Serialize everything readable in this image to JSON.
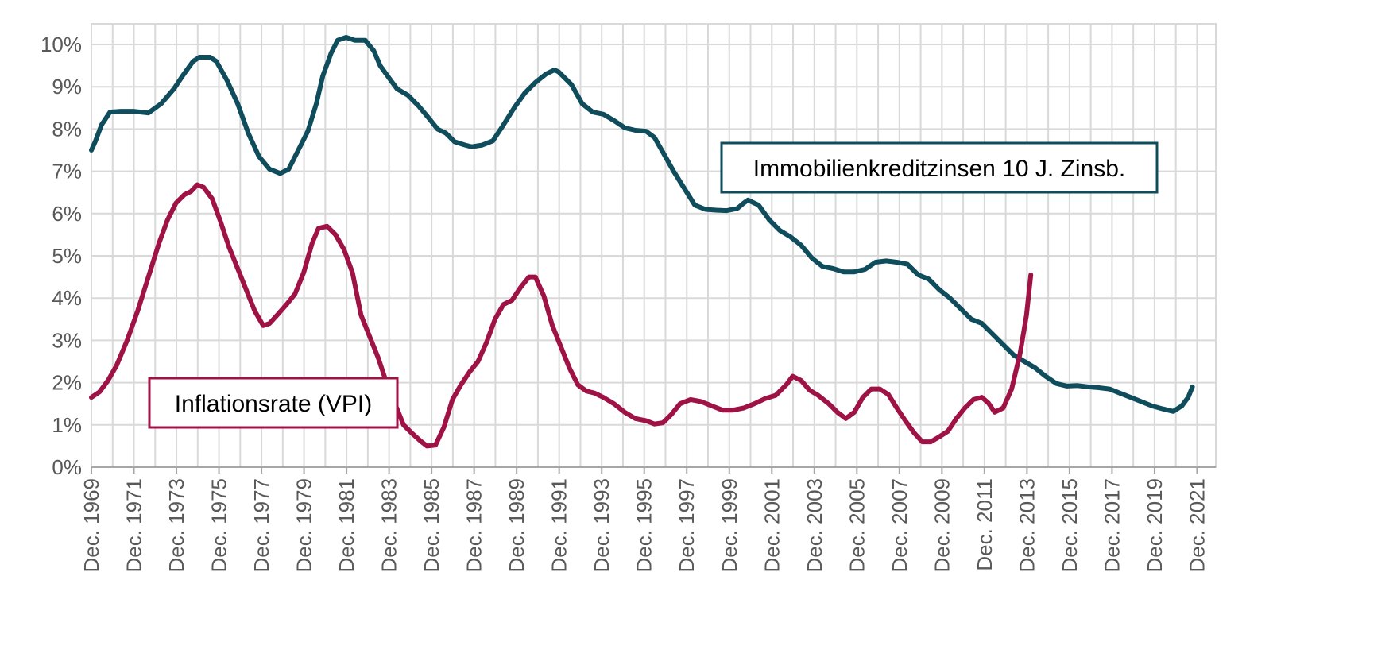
{
  "chart_data": {
    "type": "line",
    "title": "",
    "xlabel": "",
    "ylabel": "",
    "grid": true,
    "x_range": [
      1969.92,
      2022.8
    ],
    "ylim": [
      0,
      10
    ],
    "y_ticks": [
      {
        "value": 0,
        "label": "0%"
      },
      {
        "value": 1,
        "label": "1%"
      },
      {
        "value": 2,
        "label": "2%"
      },
      {
        "value": 3,
        "label": "3%"
      },
      {
        "value": 4,
        "label": "4%"
      },
      {
        "value": 5,
        "label": "5%"
      },
      {
        "value": 6,
        "label": "6%"
      },
      {
        "value": 7,
        "label": "7%"
      },
      {
        "value": 8,
        "label": "8%"
      },
      {
        "value": 9,
        "label": "9%"
      },
      {
        "value": 10,
        "label": "10%"
      }
    ],
    "x_ticks": [
      {
        "value": 1969.92,
        "label": "Dec. 1969"
      },
      {
        "value": 1971.92,
        "label": "Dec. 1971"
      },
      {
        "value": 1973.92,
        "label": "Dec. 1973"
      },
      {
        "value": 1975.92,
        "label": "Dec. 1975"
      },
      {
        "value": 1977.92,
        "label": "Dec. 1977"
      },
      {
        "value": 1979.92,
        "label": "Dec. 1979"
      },
      {
        "value": 1981.92,
        "label": "Dec. 1981"
      },
      {
        "value": 1983.92,
        "label": "Dec. 1983"
      },
      {
        "value": 1985.92,
        "label": "Dec. 1985"
      },
      {
        "value": 1987.92,
        "label": "Dec. 1987"
      },
      {
        "value": 1989.92,
        "label": "Dec. 1989"
      },
      {
        "value": 1991.92,
        "label": "Dec. 1991"
      },
      {
        "value": 1993.92,
        "label": "Dec. 1993"
      },
      {
        "value": 1995.92,
        "label": "Dec. 1995"
      },
      {
        "value": 1997.92,
        "label": "Dec. 1997"
      },
      {
        "value": 1999.92,
        "label": "Dec. 1999"
      },
      {
        "value": 2001.92,
        "label": "Dec. 2001"
      },
      {
        "value": 2003.92,
        "label": "Dec. 2003"
      },
      {
        "value": 2005.92,
        "label": "Dec. 2005"
      },
      {
        "value": 2007.92,
        "label": "Dec. 2007"
      },
      {
        "value": 2009.92,
        "label": "Dec. 2009"
      },
      {
        "value": 2011.92,
        "label": "Dec. 2011"
      },
      {
        "value": 2013.92,
        "label": "Dec. 2013"
      },
      {
        "value": 2015.92,
        "label": "Dec. 2015"
      },
      {
        "value": 2017.92,
        "label": "Dec. 2017"
      },
      {
        "value": 2019.92,
        "label": "Dec. 2019"
      },
      {
        "value": 2021.92,
        "label": "Dec. 2021"
      }
    ],
    "series": [
      {
        "name": "Immobilienkreditzinsen 10 J. Zinsb.",
        "color": "#0f4c5c",
        "points": [
          [
            1969.92,
            7.5
          ],
          [
            1970.1,
            7.7
          ],
          [
            1970.4,
            8.1
          ],
          [
            1970.8,
            8.4
          ],
          [
            1971.3,
            8.42
          ],
          [
            1971.9,
            8.42
          ],
          [
            1972.6,
            8.38
          ],
          [
            1973.2,
            8.6
          ],
          [
            1973.8,
            8.95
          ],
          [
            1974.2,
            9.25
          ],
          [
            1974.7,
            9.6
          ],
          [
            1975.0,
            9.7
          ],
          [
            1975.5,
            9.7
          ],
          [
            1975.8,
            9.6
          ],
          [
            1976.3,
            9.15
          ],
          [
            1976.8,
            8.6
          ],
          [
            1977.3,
            7.9
          ],
          [
            1977.8,
            7.35
          ],
          [
            1978.3,
            7.05
          ],
          [
            1978.8,
            6.95
          ],
          [
            1979.2,
            7.05
          ],
          [
            1979.6,
            7.45
          ],
          [
            1980.1,
            7.95
          ],
          [
            1980.5,
            8.6
          ],
          [
            1980.8,
            9.25
          ],
          [
            1981.2,
            9.8
          ],
          [
            1981.5,
            10.1
          ],
          [
            1981.9,
            10.17
          ],
          [
            1982.3,
            10.1
          ],
          [
            1982.8,
            10.1
          ],
          [
            1983.2,
            9.85
          ],
          [
            1983.5,
            9.5
          ],
          [
            1984.0,
            9.15
          ],
          [
            1984.3,
            8.95
          ],
          [
            1984.8,
            8.8
          ],
          [
            1985.3,
            8.55
          ],
          [
            1985.8,
            8.25
          ],
          [
            1986.2,
            8.0
          ],
          [
            1986.6,
            7.9
          ],
          [
            1987.0,
            7.7
          ],
          [
            1987.5,
            7.62
          ],
          [
            1987.8,
            7.58
          ],
          [
            1988.3,
            7.62
          ],
          [
            1988.8,
            7.72
          ],
          [
            1989.3,
            8.1
          ],
          [
            1989.8,
            8.5
          ],
          [
            1990.3,
            8.85
          ],
          [
            1990.8,
            9.1
          ],
          [
            1991.3,
            9.3
          ],
          [
            1991.7,
            9.4
          ],
          [
            1991.9,
            9.35
          ],
          [
            1992.5,
            9.05
          ],
          [
            1993.0,
            8.6
          ],
          [
            1993.5,
            8.4
          ],
          [
            1994.0,
            8.35
          ],
          [
            1994.5,
            8.2
          ],
          [
            1995.0,
            8.03
          ],
          [
            1995.5,
            7.97
          ],
          [
            1996.0,
            7.95
          ],
          [
            1996.4,
            7.8
          ],
          [
            1996.8,
            7.45
          ],
          [
            1997.3,
            7.0
          ],
          [
            1997.8,
            6.6
          ],
          [
            1998.3,
            6.2
          ],
          [
            1998.8,
            6.1
          ],
          [
            1999.3,
            6.08
          ],
          [
            1999.8,
            6.07
          ],
          [
            2000.3,
            6.12
          ],
          [
            2000.6,
            6.25
          ],
          [
            2000.8,
            6.32
          ],
          [
            2001.3,
            6.2
          ],
          [
            2001.8,
            5.85
          ],
          [
            2002.3,
            5.6
          ],
          [
            2002.8,
            5.45
          ],
          [
            2003.3,
            5.25
          ],
          [
            2003.8,
            4.95
          ],
          [
            2004.3,
            4.75
          ],
          [
            2004.8,
            4.7
          ],
          [
            2005.3,
            4.62
          ],
          [
            2005.8,
            4.62
          ],
          [
            2006.3,
            4.68
          ],
          [
            2006.8,
            4.85
          ],
          [
            2007.3,
            4.88
          ],
          [
            2007.8,
            4.85
          ],
          [
            2008.3,
            4.8
          ],
          [
            2008.8,
            4.55
          ],
          [
            2009.3,
            4.45
          ],
          [
            2009.8,
            4.2
          ],
          [
            2010.3,
            4.0
          ],
          [
            2010.8,
            3.75
          ],
          [
            2011.3,
            3.5
          ],
          [
            2011.8,
            3.4
          ],
          [
            2012.3,
            3.15
          ],
          [
            2012.8,
            2.9
          ],
          [
            2013.3,
            2.65
          ],
          [
            2013.8,
            2.5
          ],
          [
            2014.3,
            2.35
          ],
          [
            2014.8,
            2.15
          ],
          [
            2015.3,
            1.98
          ],
          [
            2015.8,
            1.92
          ],
          [
            2016.3,
            1.93
          ],
          [
            2016.8,
            1.9
          ],
          [
            2017.3,
            1.88
          ],
          [
            2017.8,
            1.85
          ],
          [
            2018.3,
            1.75
          ],
          [
            2018.8,
            1.65
          ],
          [
            2019.3,
            1.55
          ],
          [
            2019.8,
            1.45
          ],
          [
            2020.3,
            1.38
          ],
          [
            2020.8,
            1.32
          ],
          [
            2021.2,
            1.45
          ],
          [
            2021.5,
            1.65
          ],
          [
            2021.7,
            1.9
          ]
        ]
      },
      {
        "name": "Inflationsrate (VPI)",
        "color": "#9e1246",
        "points": [
          [
            1969.92,
            1.65
          ],
          [
            1970.3,
            1.78
          ],
          [
            1970.7,
            2.05
          ],
          [
            1971.1,
            2.4
          ],
          [
            1971.6,
            3.0
          ],
          [
            1972.1,
            3.7
          ],
          [
            1972.6,
            4.5
          ],
          [
            1973.1,
            5.3
          ],
          [
            1973.5,
            5.85
          ],
          [
            1973.9,
            6.25
          ],
          [
            1974.3,
            6.45
          ],
          [
            1974.6,
            6.52
          ],
          [
            1974.9,
            6.68
          ],
          [
            1975.2,
            6.62
          ],
          [
            1975.6,
            6.35
          ],
          [
            1976.0,
            5.8
          ],
          [
            1976.4,
            5.2
          ],
          [
            1976.8,
            4.7
          ],
          [
            1977.2,
            4.2
          ],
          [
            1977.6,
            3.7
          ],
          [
            1978.0,
            3.35
          ],
          [
            1978.3,
            3.4
          ],
          [
            1978.7,
            3.62
          ],
          [
            1979.1,
            3.85
          ],
          [
            1979.5,
            4.1
          ],
          [
            1979.9,
            4.6
          ],
          [
            1980.3,
            5.3
          ],
          [
            1980.6,
            5.65
          ],
          [
            1981.0,
            5.7
          ],
          [
            1981.4,
            5.5
          ],
          [
            1981.8,
            5.15
          ],
          [
            1982.2,
            4.6
          ],
          [
            1982.6,
            3.6
          ],
          [
            1983.0,
            3.1
          ],
          [
            1983.4,
            2.6
          ],
          [
            1983.8,
            2.0
          ],
          [
            1984.2,
            1.5
          ],
          [
            1984.6,
            1.0
          ],
          [
            1985.0,
            0.8
          ],
          [
            1985.4,
            0.62
          ],
          [
            1985.7,
            0.5
          ],
          [
            1986.1,
            0.52
          ],
          [
            1986.5,
            0.95
          ],
          [
            1986.9,
            1.6
          ],
          [
            1987.3,
            1.95
          ],
          [
            1987.7,
            2.25
          ],
          [
            1988.1,
            2.5
          ],
          [
            1988.5,
            2.95
          ],
          [
            1988.9,
            3.5
          ],
          [
            1989.3,
            3.85
          ],
          [
            1989.7,
            3.95
          ],
          [
            1990.1,
            4.25
          ],
          [
            1990.5,
            4.5
          ],
          [
            1990.8,
            4.5
          ],
          [
            1991.2,
            4.05
          ],
          [
            1991.6,
            3.35
          ],
          [
            1992.0,
            2.85
          ],
          [
            1992.4,
            2.35
          ],
          [
            1992.8,
            1.95
          ],
          [
            1993.2,
            1.8
          ],
          [
            1993.6,
            1.75
          ],
          [
            1994.0,
            1.65
          ],
          [
            1994.5,
            1.5
          ],
          [
            1995.0,
            1.3
          ],
          [
            1995.5,
            1.15
          ],
          [
            1996.0,
            1.1
          ],
          [
            1996.4,
            1.02
          ],
          [
            1996.8,
            1.05
          ],
          [
            1997.2,
            1.25
          ],
          [
            1997.6,
            1.5
          ],
          [
            1998.1,
            1.6
          ],
          [
            1998.6,
            1.55
          ],
          [
            1999.1,
            1.45
          ],
          [
            1999.6,
            1.35
          ],
          [
            2000.1,
            1.35
          ],
          [
            2000.6,
            1.4
          ],
          [
            2001.1,
            1.5
          ],
          [
            2001.6,
            1.62
          ],
          [
            2002.1,
            1.7
          ],
          [
            2002.6,
            1.95
          ],
          [
            2002.9,
            2.15
          ],
          [
            2003.3,
            2.05
          ],
          [
            2003.7,
            1.82
          ],
          [
            2004.1,
            1.7
          ],
          [
            2004.6,
            1.5
          ],
          [
            2005.0,
            1.3
          ],
          [
            2005.4,
            1.15
          ],
          [
            2005.8,
            1.3
          ],
          [
            2006.2,
            1.65
          ],
          [
            2006.6,
            1.85
          ],
          [
            2007.0,
            1.85
          ],
          [
            2007.4,
            1.72
          ],
          [
            2007.8,
            1.4
          ],
          [
            2008.2,
            1.1
          ],
          [
            2008.6,
            0.82
          ],
          [
            2009.0,
            0.6
          ],
          [
            2009.4,
            0.6
          ],
          [
            2009.8,
            0.72
          ],
          [
            2010.2,
            0.85
          ],
          [
            2010.6,
            1.15
          ],
          [
            2011.0,
            1.4
          ],
          [
            2011.4,
            1.6
          ],
          [
            2011.8,
            1.65
          ],
          [
            2012.1,
            1.52
          ],
          [
            2012.4,
            1.3
          ],
          [
            2012.8,
            1.4
          ],
          [
            2013.2,
            1.85
          ],
          [
            2013.6,
            2.7
          ],
          [
            2013.9,
            3.6
          ],
          [
            2014.1,
            4.55
          ]
        ]
      }
    ],
    "annotations": [
      {
        "text": "Immobilienkreditzinsen 10 J. Zinsb.",
        "series": 0
      },
      {
        "text": "Inflationsrate (VPI)",
        "series": 1
      }
    ]
  }
}
